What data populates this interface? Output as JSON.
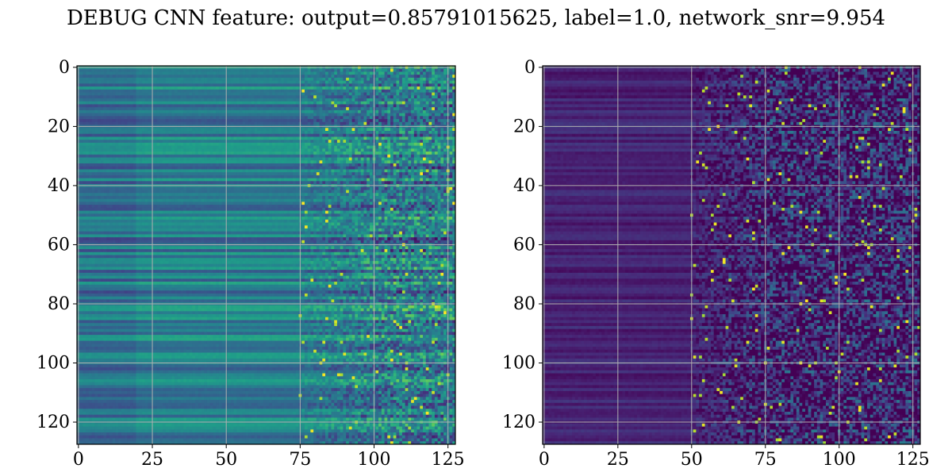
{
  "title": "DEBUG CNN feature: output=0.85791015625, label=1.0, network_snr=9.954",
  "chart_data": [
    {
      "type": "heatmap",
      "title": "",
      "xlabel": "",
      "ylabel": "",
      "rows": 128,
      "cols": 128,
      "xlim": [
        0,
        127
      ],
      "ylim": [
        127,
        0
      ],
      "x_ticks": [
        0,
        25,
        50,
        75,
        100,
        125
      ],
      "y_ticks": [
        0,
        20,
        40,
        60,
        80,
        100,
        120
      ],
      "grid": true,
      "colormap": "viridis",
      "colormap_stops": [
        "#440154",
        "#482878",
        "#3e4989",
        "#31688e",
        "#26828e",
        "#1f9e89",
        "#35b779",
        "#6ece58",
        "#b5de2b",
        "#fde725"
      ],
      "value_range": [
        0,
        1
      ],
      "description": "rows show horizontal banding on left; columns beyond ~75 are noisy with bright speckles",
      "base_level": 0.42,
      "noise_onset_col": 75
    },
    {
      "type": "heatmap",
      "title": "",
      "xlabel": "",
      "ylabel": "",
      "rows": 128,
      "cols": 128,
      "xlim": [
        0,
        127
      ],
      "ylim": [
        127,
        0
      ],
      "x_ticks": [
        0,
        25,
        50,
        75,
        100,
        125
      ],
      "y_ticks": [
        0,
        20,
        40,
        60,
        80,
        100,
        120
      ],
      "grid": true,
      "colormap": "viridis",
      "colormap_stops": [
        "#440154",
        "#482878",
        "#3e4989",
        "#31688e",
        "#26828e",
        "#1f9e89",
        "#35b779",
        "#6ece58",
        "#b5de2b",
        "#fde725"
      ],
      "value_range": [
        0,
        1
      ],
      "description": "mostly dark purple with horizontal banding; columns beyond ~50 increasingly noisy with teal/yellow speckles",
      "base_level": 0.1,
      "noise_onset_col": 50
    }
  ]
}
